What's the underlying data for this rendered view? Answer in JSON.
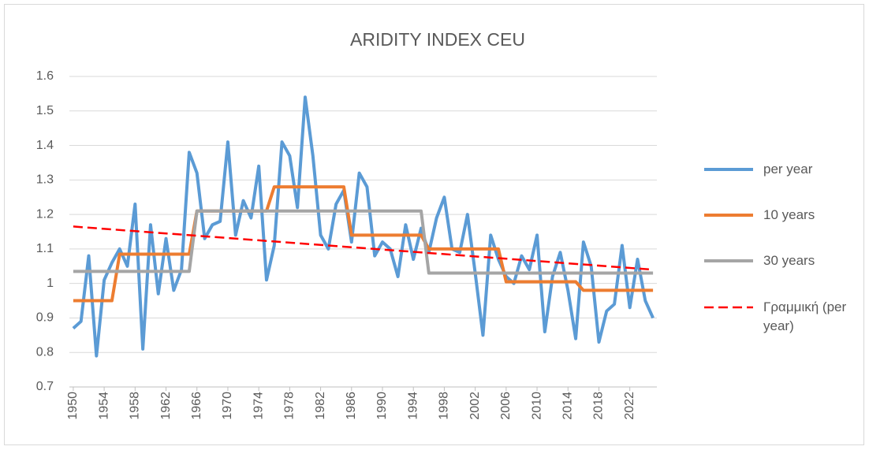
{
  "chart_data": {
    "type": "line",
    "title": "ARIDITY INDEX CEU",
    "x": [
      1950,
      1951,
      1952,
      1953,
      1954,
      1955,
      1956,
      1957,
      1958,
      1959,
      1960,
      1961,
      1962,
      1963,
      1964,
      1965,
      1966,
      1967,
      1968,
      1969,
      1970,
      1971,
      1972,
      1973,
      1974,
      1975,
      1976,
      1977,
      1978,
      1979,
      1980,
      1981,
      1982,
      1983,
      1984,
      1985,
      1986,
      1987,
      1988,
      1989,
      1990,
      1991,
      1992,
      1993,
      1994,
      1995,
      1996,
      1997,
      1998,
      1999,
      2000,
      2001,
      2002,
      2003,
      2004,
      2005,
      2006,
      2007,
      2008,
      2009,
      2010,
      2011,
      2012,
      2013,
      2014,
      2015,
      2016,
      2017,
      2018,
      2019,
      2020,
      2021,
      2022,
      2023,
      2024,
      2025
    ],
    "series": [
      {
        "name": "per year",
        "color": "#5b9bd5",
        "values": [
          0.87,
          0.89,
          1.08,
          0.79,
          1.01,
          1.06,
          1.1,
          1.05,
          1.23,
          0.81,
          1.17,
          0.97,
          1.13,
          0.98,
          1.04,
          1.38,
          1.32,
          1.13,
          1.17,
          1.18,
          1.41,
          1.14,
          1.24,
          1.19,
          1.34,
          1.01,
          1.11,
          1.41,
          1.37,
          1.22,
          1.54,
          1.37,
          1.14,
          1.1,
          1.23,
          1.27,
          1.12,
          1.32,
          1.28,
          1.08,
          1.12,
          1.1,
          1.02,
          1.17,
          1.07,
          1.16,
          1.09,
          1.19,
          1.25,
          1.1,
          1.09,
          1.2,
          1.03,
          0.85,
          1.14,
          1.07,
          1.02,
          1.0,
          1.08,
          1.04,
          1.14,
          0.86,
          1.02,
          1.09,
          0.98,
          0.84,
          1.12,
          1.05,
          0.83,
          0.92,
          0.94,
          1.11,
          0.93,
          1.07,
          0.95,
          0.9
        ]
      },
      {
        "name": "10 years",
        "color": "#ed7d31",
        "values": [
          0.95,
          0.95,
          0.95,
          0.95,
          0.95,
          0.95,
          1.085,
          1.085,
          1.085,
          1.085,
          1.085,
          1.085,
          1.085,
          1.085,
          1.085,
          1.085,
          1.21,
          1.21,
          1.21,
          1.21,
          1.21,
          1.21,
          1.21,
          1.21,
          1.21,
          1.21,
          1.28,
          1.28,
          1.28,
          1.28,
          1.28,
          1.28,
          1.28,
          1.28,
          1.28,
          1.28,
          1.14,
          1.14,
          1.14,
          1.14,
          1.14,
          1.14,
          1.14,
          1.14,
          1.14,
          1.14,
          1.1,
          1.1,
          1.1,
          1.1,
          1.1,
          1.1,
          1.1,
          1.1,
          1.1,
          1.1,
          1.005,
          1.005,
          1.005,
          1.005,
          1.005,
          1.005,
          1.005,
          1.005,
          1.005,
          1.005,
          0.98,
          0.98,
          0.98,
          0.98,
          0.98,
          0.98,
          0.98,
          0.98,
          0.98,
          0.98
        ]
      },
      {
        "name": "30 years",
        "color": "#a5a5a5",
        "values": [
          1.035,
          1.035,
          1.035,
          1.035,
          1.035,
          1.035,
          1.035,
          1.035,
          1.035,
          1.035,
          1.035,
          1.035,
          1.035,
          1.035,
          1.035,
          1.035,
          1.21,
          1.21,
          1.21,
          1.21,
          1.21,
          1.21,
          1.21,
          1.21,
          1.21,
          1.21,
          1.21,
          1.21,
          1.21,
          1.21,
          1.21,
          1.21,
          1.21,
          1.21,
          1.21,
          1.21,
          1.21,
          1.21,
          1.21,
          1.21,
          1.21,
          1.21,
          1.21,
          1.21,
          1.21,
          1.21,
          1.03,
          1.03,
          1.03,
          1.03,
          1.03,
          1.03,
          1.03,
          1.03,
          1.03,
          1.03,
          1.03,
          1.03,
          1.03,
          1.03,
          1.03,
          1.03,
          1.03,
          1.03,
          1.03,
          1.03,
          1.03,
          1.03,
          1.03,
          1.03,
          1.03,
          1.03,
          1.03,
          1.03,
          1.03,
          1.03
        ]
      },
      {
        "name": "Γραμμική (per year)",
        "color": "#ff0000",
        "dashed": true,
        "x": [
          1950,
          2025
        ],
        "values": [
          1.165,
          1.04
        ]
      }
    ],
    "xlim": [
      1949.5,
      2025.5
    ],
    "xticks": [
      1950,
      1954,
      1958,
      1962,
      1966,
      1970,
      1974,
      1978,
      1982,
      1986,
      1990,
      1994,
      1998,
      2002,
      2006,
      2010,
      2014,
      2018,
      2022
    ],
    "ylim": [
      0.7,
      1.6
    ],
    "yticks": [
      0.7,
      0.8,
      0.9,
      1,
      1.1,
      1.2,
      1.3,
      1.4,
      1.5,
      1.6
    ],
    "grid": true,
    "legend": "right"
  }
}
